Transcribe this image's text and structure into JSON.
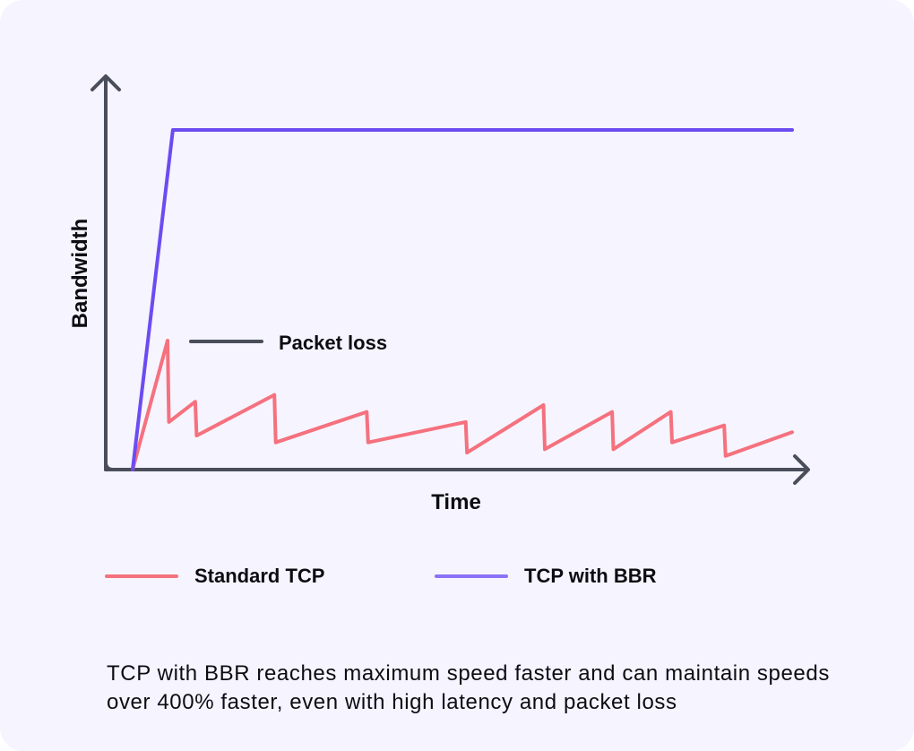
{
  "chart_data": {
    "type": "line",
    "title": "",
    "xlabel": "Time",
    "ylabel": "Bandwidth",
    "xlim": [
      0,
      100
    ],
    "ylim": [
      0,
      100
    ],
    "annotation": {
      "label": "Packet loss",
      "line_color": "#4a4e5a"
    },
    "series": [
      {
        "name": "Standard TCP",
        "color": "#f5717e",
        "points": [
          [
            0,
            0
          ],
          [
            5.3,
            38
          ],
          [
            5.5,
            14
          ],
          [
            9.5,
            20
          ],
          [
            9.7,
            10
          ],
          [
            21.5,
            22
          ],
          [
            21.7,
            8
          ],
          [
            35.5,
            17
          ],
          [
            35.7,
            8
          ],
          [
            50.5,
            14
          ],
          [
            50.7,
            5
          ],
          [
            62.3,
            19
          ],
          [
            62.5,
            6
          ],
          [
            72.7,
            17
          ],
          [
            72.9,
            6
          ],
          [
            81.6,
            17
          ],
          [
            81.8,
            8
          ],
          [
            89.7,
            13
          ],
          [
            89.9,
            4
          ],
          [
            100,
            11
          ]
        ]
      },
      {
        "name": "TCP with BBR",
        "color": "#6c4cf1",
        "points": [
          [
            0,
            0
          ],
          [
            6.1,
            100
          ],
          [
            100,
            100
          ]
        ]
      }
    ],
    "legend": [
      {
        "label": "Standard TCP",
        "color": "#f5717e"
      },
      {
        "label": "TCP with BBR",
        "color": "#8b72f5"
      }
    ]
  },
  "caption": "TCP with BBR reaches maximum speed faster and can maintain speeds over 400% faster, even with high latency and packet loss"
}
